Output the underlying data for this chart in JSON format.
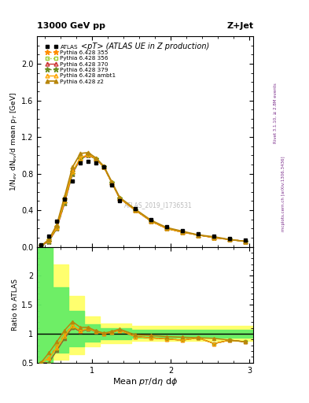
{
  "title_top": "13000 GeV pp",
  "title_right": "Z+Jet",
  "plot_title": "<pT> (ATLAS UE in Z production)",
  "xlabel": "Mean $p_T$/d\\eta d\\phi",
  "ylabel_main": "1/N$_{ev}$ dN$_{ev}$/d mean p$_T$ [GeV]",
  "ylabel_ratio": "Ratio to ATLAS",
  "watermark": "ATLAS_2019_I1736531",
  "right_label_top": "Rivet 3.1.10, ≥ 2.8M events",
  "right_label_bot": "mcplots.cern.ch [arXiv:1306.3436]",
  "xlim": [
    0.3,
    3.05
  ],
  "ylim_main": [
    0.0,
    2.3
  ],
  "ylim_ratio": [
    0.5,
    2.5
  ],
  "atlas_x": [
    0.35,
    0.45,
    0.55,
    0.65,
    0.75,
    0.85,
    0.95,
    1.05,
    1.15,
    1.25,
    1.35,
    1.55,
    1.75,
    1.95,
    2.15,
    2.35,
    2.55,
    2.75,
    2.95
  ],
  "atlas_y": [
    0.02,
    0.12,
    0.28,
    0.52,
    0.72,
    0.92,
    0.93,
    0.92,
    0.87,
    0.68,
    0.5,
    0.42,
    0.3,
    0.22,
    0.18,
    0.14,
    0.12,
    0.09,
    0.07
  ],
  "x_theory": [
    0.35,
    0.45,
    0.55,
    0.65,
    0.75,
    0.85,
    0.95,
    1.05,
    1.15,
    1.25,
    1.35,
    1.55,
    1.75,
    1.95,
    2.15,
    2.35,
    2.55,
    2.75,
    2.95
  ],
  "py355_y": [
    0.01,
    0.07,
    0.22,
    0.52,
    0.82,
    0.97,
    1.01,
    0.96,
    0.87,
    0.7,
    0.53,
    0.4,
    0.28,
    0.2,
    0.16,
    0.13,
    0.1,
    0.08,
    0.06
  ],
  "py356_y": [
    0.01,
    0.07,
    0.22,
    0.52,
    0.82,
    0.97,
    1.01,
    0.96,
    0.87,
    0.7,
    0.53,
    0.4,
    0.28,
    0.2,
    0.16,
    0.13,
    0.1,
    0.08,
    0.06
  ],
  "py370_y": [
    0.01,
    0.06,
    0.2,
    0.48,
    0.8,
    0.96,
    1.0,
    0.96,
    0.87,
    0.7,
    0.53,
    0.4,
    0.28,
    0.2,
    0.16,
    0.13,
    0.1,
    0.08,
    0.06
  ],
  "py379_y": [
    0.01,
    0.06,
    0.2,
    0.48,
    0.8,
    0.96,
    1.0,
    0.96,
    0.87,
    0.7,
    0.53,
    0.4,
    0.28,
    0.2,
    0.16,
    0.13,
    0.1,
    0.08,
    0.06
  ],
  "pyambt1_y": [
    0.01,
    0.07,
    0.21,
    0.5,
    0.82,
    0.97,
    1.01,
    0.96,
    0.87,
    0.7,
    0.53,
    0.4,
    0.28,
    0.2,
    0.16,
    0.13,
    0.1,
    0.08,
    0.06
  ],
  "pyz2_y": [
    0.01,
    0.08,
    0.24,
    0.55,
    0.87,
    1.02,
    1.03,
    0.97,
    0.88,
    0.71,
    0.54,
    0.41,
    0.29,
    0.21,
    0.17,
    0.13,
    0.11,
    0.08,
    0.06
  ],
  "py355_ratio": [
    0.5,
    0.58,
    0.79,
    1.0,
    1.14,
    1.05,
    1.09,
    1.04,
    1.0,
    1.03,
    1.06,
    0.95,
    0.93,
    0.91,
    0.89,
    0.93,
    0.83,
    0.89,
    0.86
  ],
  "py356_ratio": [
    0.5,
    0.58,
    0.79,
    1.0,
    1.14,
    1.05,
    1.09,
    1.04,
    1.0,
    1.03,
    1.06,
    0.95,
    0.93,
    0.91,
    0.89,
    0.93,
    0.83,
    0.89,
    0.86
  ],
  "py370_ratio": [
    0.5,
    0.5,
    0.71,
    0.92,
    1.11,
    1.04,
    1.08,
    1.04,
    1.0,
    1.03,
    1.06,
    0.95,
    0.93,
    0.91,
    0.89,
    0.93,
    0.83,
    0.89,
    0.86
  ],
  "py379_ratio": [
    0.5,
    0.5,
    0.71,
    0.92,
    1.11,
    1.04,
    1.08,
    1.04,
    1.0,
    1.03,
    1.06,
    0.95,
    0.93,
    0.91,
    0.89,
    0.93,
    0.83,
    0.89,
    0.86
  ],
  "pyambt1_ratio": [
    0.5,
    0.58,
    0.75,
    0.96,
    1.14,
    1.05,
    1.09,
    1.04,
    1.0,
    1.03,
    1.06,
    0.95,
    0.93,
    0.91,
    0.89,
    0.93,
    0.83,
    0.89,
    0.86
  ],
  "pyz2_ratio": [
    0.5,
    0.67,
    0.86,
    1.06,
    1.21,
    1.11,
    1.11,
    1.05,
    1.01,
    1.04,
    1.08,
    0.98,
    0.97,
    0.95,
    0.94,
    0.93,
    0.92,
    0.89,
    0.86
  ],
  "color_355": "#FF8C00",
  "color_356": "#9ACD32",
  "color_370": "#CC3333",
  "color_379": "#6B8E23",
  "color_ambt1": "#FFA500",
  "color_z2": "#B8860B"
}
